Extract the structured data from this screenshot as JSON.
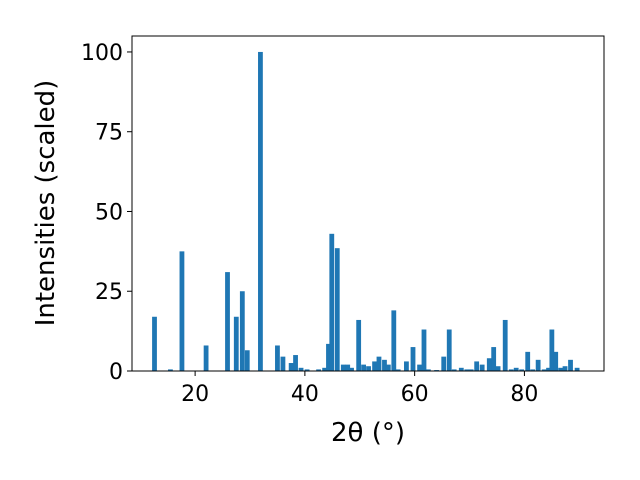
{
  "chart_data": {
    "type": "bar",
    "xlabel": "2θ (°)",
    "ylabel": "Intensities (scaled)",
    "xlim": [
      8.5,
      94.5
    ],
    "ylim": [
      0,
      105
    ],
    "grid": false,
    "bar_color": "#1f77b4",
    "x_ticks": [
      {
        "value": 20,
        "label": "20"
      },
      {
        "value": 40,
        "label": "40"
      },
      {
        "value": 60,
        "label": "60"
      },
      {
        "value": 80,
        "label": "80"
      }
    ],
    "y_ticks": [
      {
        "value": 0,
        "label": "0"
      },
      {
        "value": 25,
        "label": "25"
      },
      {
        "value": 50,
        "label": "50"
      },
      {
        "value": 75,
        "label": "75"
      },
      {
        "value": 100,
        "label": "100"
      }
    ],
    "x": [
      12.6,
      15.5,
      17.6,
      22.0,
      25.9,
      27.5,
      28.6,
      29.5,
      31.9,
      35.0,
      36.0,
      37.5,
      38.3,
      39.3,
      40.4,
      42.5,
      43.6,
      44.3,
      44.9,
      45.9,
      47.0,
      47.8,
      48.5,
      49.8,
      50.7,
      51.6,
      52.7,
      53.5,
      54.5,
      55.2,
      56.2,
      57.0,
      58.5,
      59.7,
      60.9,
      61.7,
      62.5,
      64.0,
      65.3,
      66.3,
      67.2,
      68.5,
      69.5,
      70.3,
      71.3,
      72.3,
      73.6,
      74.4,
      75.2,
      76.5,
      77.6,
      78.5,
      79.5,
      80.6,
      81.5,
      82.5,
      83.6,
      84.4,
      85.0,
      85.7,
      86.6,
      87.4,
      88.4,
      89.6
    ],
    "values": [
      17,
      0.5,
      37.5,
      8,
      31,
      17,
      25,
      6.5,
      100,
      8,
      4.5,
      2.5,
      5,
      1,
      0.5,
      0.5,
      1,
      8.5,
      43,
      38.5,
      2,
      2,
      1,
      16,
      2,
      1.5,
      3,
      4.5,
      3.5,
      2,
      19,
      0.5,
      3,
      7.5,
      2,
      13,
      0.5,
      0.3,
      4.5,
      13,
      0.5,
      1,
      0.5,
      0.5,
      3,
      2,
      4,
      7.5,
      1.5,
      16,
      0.5,
      1,
      0.5,
      6,
      0.5,
      3.5,
      0.5,
      1,
      13,
      6,
      1,
      1.5,
      3.5,
      1
    ]
  }
}
